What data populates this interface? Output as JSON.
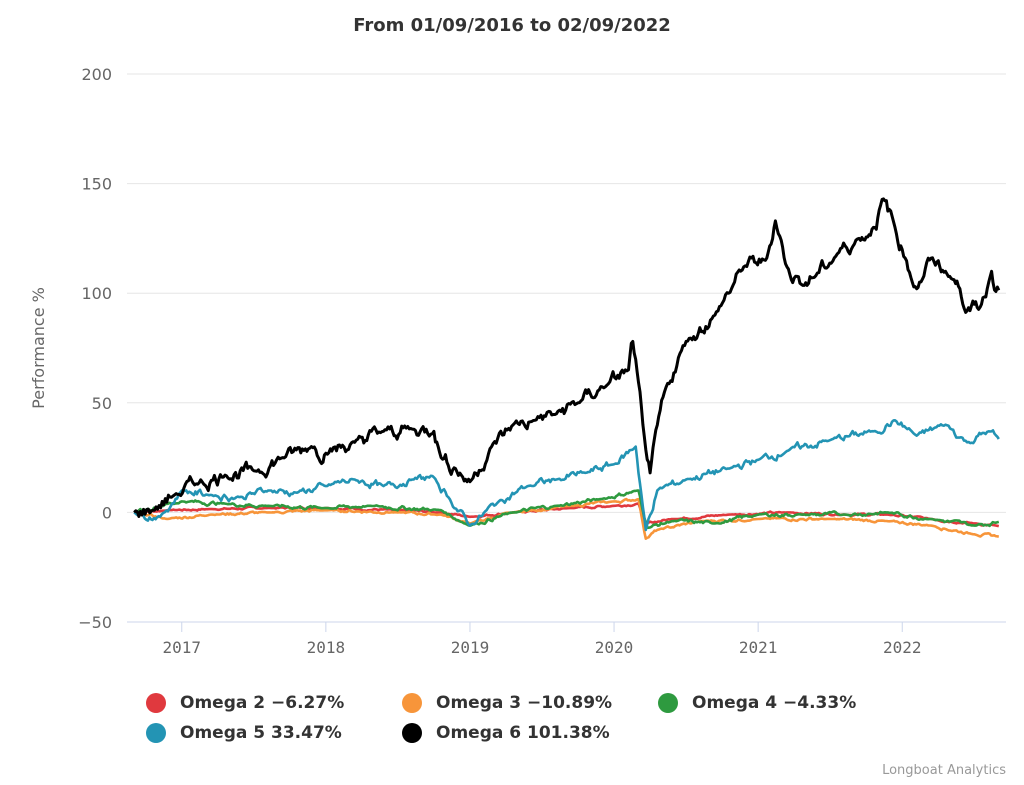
{
  "chart_data": {
    "type": "line",
    "title": "From 01/09/2016 to 02/09/2022",
    "xlabel": "",
    "ylabel": "Performance %",
    "xlim": [
      2016.62,
      2022.72
    ],
    "ylim": [
      -50,
      200
    ],
    "yticks": [
      -50,
      0,
      50,
      100,
      150,
      200
    ],
    "ytick_labels": [
      "−50",
      "0",
      "50",
      "100",
      "150",
      "200"
    ],
    "xticks": [
      2017,
      2018,
      2019,
      2020,
      2021,
      2022
    ],
    "xtick_labels": [
      "2017",
      "2018",
      "2019",
      "2020",
      "2021",
      "2022"
    ],
    "grid": true,
    "legend_position": "bottom",
    "credit": "Longboat Analytics",
    "series": [
      {
        "name": "Omega 2",
        "legend_label": "Omega 2 −6.27%",
        "final_value": -6.27,
        "color": "#e0393e",
        "x": [
          2016.67,
          2016.9,
          2017.2,
          2017.6,
          2018.0,
          2018.5,
          2018.8,
          2019.0,
          2019.3,
          2019.7,
          2020.0,
          2020.17,
          2020.22,
          2020.4,
          2020.8,
          2021.2,
          2021.6,
          2021.9,
          2022.2,
          2022.5,
          2022.67
        ],
        "y": [
          0,
          1,
          1.5,
          2,
          2,
          1,
          0,
          -2,
          0,
          2,
          3,
          4,
          -5,
          -3,
          -1,
          0,
          -1,
          -1,
          -3,
          -5,
          -6.27
        ]
      },
      {
        "name": "Omega 3",
        "legend_label": "Omega 3 −10.89%",
        "final_value": -10.89,
        "color": "#f7953a",
        "x": [
          2016.67,
          2016.9,
          2017.2,
          2017.6,
          2018.0,
          2018.5,
          2018.8,
          2019.0,
          2019.3,
          2019.7,
          2020.0,
          2020.17,
          2020.22,
          2020.3,
          2020.6,
          2021.0,
          2021.5,
          2021.9,
          2022.2,
          2022.5,
          2022.67
        ],
        "y": [
          0,
          -3,
          -1,
          0,
          1,
          0,
          -1,
          -5,
          0,
          3,
          5,
          6,
          -12,
          -8,
          -4,
          -3,
          -3,
          -4,
          -6,
          -10,
          -10.89
        ]
      },
      {
        "name": "Omega 4",
        "legend_label": "Omega 4 −4.33%",
        "final_value": -4.33,
        "color": "#2e9a3f",
        "x": [
          2016.67,
          2016.85,
          2017.0,
          2017.3,
          2017.6,
          2018.0,
          2018.3,
          2018.8,
          2019.0,
          2019.3,
          2019.6,
          2019.9,
          2020.17,
          2020.23,
          2020.4,
          2020.7,
          2021.0,
          2021.3,
          2021.6,
          2021.9,
          2022.2,
          2022.5,
          2022.67
        ],
        "y": [
          0,
          3,
          5,
          4,
          3,
          2,
          3,
          1,
          -6,
          0,
          3,
          6,
          10,
          -7,
          -4,
          -5,
          -1,
          -1,
          -1,
          0,
          -3,
          -6,
          -4.33
        ]
      },
      {
        "name": "Omega 5",
        "legend_label": "Omega 5 33.47%",
        "final_value": 33.47,
        "color": "#2394b4",
        "x": [
          2016.67,
          2016.85,
          2017.0,
          2017.2,
          2017.4,
          2017.6,
          2017.8,
          2018.0,
          2018.2,
          2018.4,
          2018.6,
          2018.75,
          2018.85,
          2019.0,
          2019.2,
          2019.4,
          2019.6,
          2019.8,
          2020.0,
          2020.15,
          2020.22,
          2020.3,
          2020.5,
          2020.8,
          2021.0,
          2021.2,
          2021.5,
          2021.8,
          2021.95,
          2022.1,
          2022.3,
          2022.45,
          2022.6,
          2022.67
        ],
        "y": [
          0,
          -2,
          10,
          8,
          7,
          10,
          9,
          12,
          15,
          12,
          15,
          16,
          7,
          -6,
          5,
          12,
          15,
          18,
          22,
          30,
          -8,
          10,
          15,
          20,
          24,
          28,
          33,
          37,
          42,
          35,
          40,
          32,
          37,
          33.47
        ]
      },
      {
        "name": "Omega 6",
        "legend_label": "Omega 6 101.38%",
        "final_value": 101.38,
        "color": "#000000",
        "x": [
          2016.67,
          2016.8,
          2016.95,
          2017.1,
          2017.3,
          2017.5,
          2017.7,
          2017.9,
          2018.0,
          2018.2,
          2018.4,
          2018.6,
          2018.75,
          2018.8,
          2018.9,
          2019.0,
          2019.15,
          2019.3,
          2019.45,
          2019.6,
          2019.75,
          2019.95,
          2020.1,
          2020.13,
          2020.2,
          2020.25,
          2020.35,
          2020.5,
          2020.7,
          2020.9,
          2021.05,
          2021.12,
          2021.2,
          2021.3,
          2021.4,
          2021.55,
          2021.7,
          2021.8,
          2021.87,
          2021.95,
          2022.0,
          2022.1,
          2022.2,
          2022.3,
          2022.4,
          2022.47,
          2022.55,
          2022.62,
          2022.67
        ],
        "y": [
          0,
          1,
          8,
          13,
          17,
          19,
          25,
          30,
          27,
          32,
          37,
          38,
          37,
          25,
          20,
          14,
          30,
          40,
          42,
          45,
          50,
          58,
          65,
          78,
          40,
          18,
          55,
          78,
          90,
          112,
          115,
          133,
          112,
          104,
          108,
          118,
          125,
          130,
          143,
          130,
          120,
          102,
          116,
          110,
          102,
          92,
          95,
          110,
          101.38
        ]
      }
    ]
  }
}
